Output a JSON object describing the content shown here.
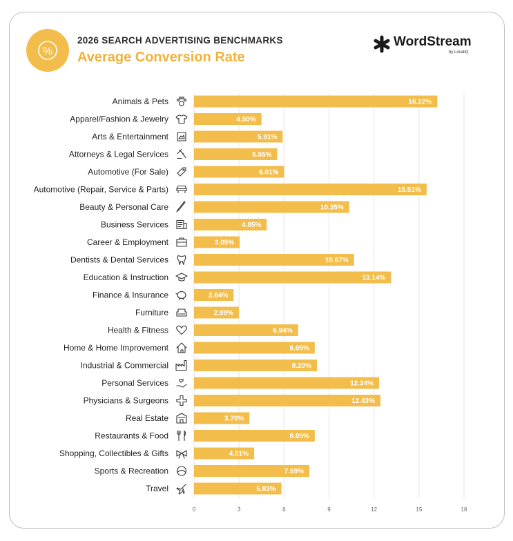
{
  "header": {
    "kicker": "2026 SEARCH ADVERTISING BENCHMARKS",
    "title": "Average Conversion Rate",
    "badge_glyph": "%"
  },
  "logo": {
    "name": "WordStream",
    "sub": "by LocaliQ"
  },
  "colors": {
    "bar": "#f3bd4c",
    "accent_text": "#f0b23a",
    "grid": "#e5e5e5"
  },
  "chart_data": {
    "type": "bar",
    "orientation": "horizontal",
    "title": "Average Conversion Rate",
    "xlim": [
      0,
      18
    ],
    "xticks": [
      0,
      3,
      6,
      9,
      12,
      15,
      18
    ],
    "grid": true,
    "categories": [
      "Animals & Pets",
      "Apparel/Fashion & Jewelry",
      "Arts & Entertainment",
      "Attorneys & Legal Services",
      "Automotive (For Sale)",
      "Automotive (Repair, Service & Parts)",
      "Beauty & Personal Care",
      "Business Services",
      "Career & Employment",
      "Dentists & Dental Services",
      "Education & Instruction",
      "Finance & Insurance",
      "Furniture",
      "Health & Fitness",
      "Home & Home Improvement",
      "Industrial & Commercial",
      "Personal Services",
      "Physicians & Surgeons",
      "Real Estate",
      "Restaurants & Food",
      "Shopping, Collectibles & Gifts",
      "Sports & Recreation",
      "Travel"
    ],
    "values": [
      16.22,
      4.5,
      5.91,
      5.55,
      6.01,
      15.51,
      10.35,
      4.85,
      3.05,
      10.67,
      13.14,
      2.64,
      2.99,
      6.94,
      8.05,
      8.2,
      12.34,
      12.43,
      3.7,
      8.05,
      4.01,
      7.69,
      5.83
    ],
    "value_labels": [
      "16.22%",
      "4.50%",
      "5.91%",
      "5.55%",
      "6.01%",
      "15.51%",
      "10.35%",
      "4.85%",
      "3.05%",
      "10.67%",
      "13.14%",
      "2.64%",
      "2.99%",
      "6.94%",
      "8.05%",
      "8.20%",
      "12.34%",
      "12.43%",
      "3.70%",
      "8.05%",
      "4.01%",
      "7.69%",
      "5.83%"
    ],
    "icons": [
      "paw-icon",
      "tshirt-icon",
      "picture-icon",
      "gavel-icon",
      "price-tag-icon",
      "car-icon",
      "brush-icon",
      "document-icon",
      "briefcase-icon",
      "tooth-icon",
      "graduation-cap-icon",
      "piggy-bank-icon",
      "armchair-icon",
      "heart-icon",
      "house-icon",
      "factory-icon",
      "hand-heart-icon",
      "medical-cross-icon",
      "building-icon",
      "fork-knife-icon",
      "gift-bow-icon",
      "ball-icon",
      "airplane-icon"
    ]
  }
}
